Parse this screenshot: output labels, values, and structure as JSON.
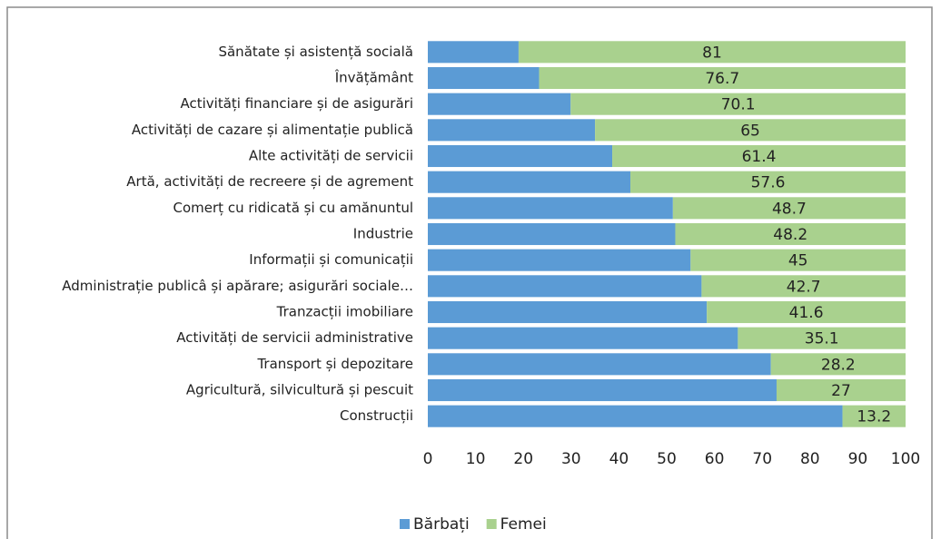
{
  "chart_data": {
    "type": "stacked-barh",
    "categories": [
      "Sănătate și asistență socială",
      "Învățământ",
      "Activități financiare și de asigurări",
      "Activități de cazare și alimentație publică",
      "Alte activități de servicii",
      "Artă, activități de recreere și de agrement",
      "Comerț cu ridicată și cu amănuntul",
      "Industrie",
      "Informații și comunicații",
      "Administrație publicâ și apărare; asigurări sociale…",
      "Tranzacții imobiliare",
      "Activități de servicii administrative",
      "Transport și depozitare",
      "Agricultură, silvicultură și pescuit",
      "Construcții"
    ],
    "series": [
      {
        "name": "Bărbați",
        "color": "#5b9bd5",
        "values": [
          19,
          23.3,
          29.9,
          35,
          38.6,
          42.4,
          51.3,
          51.8,
          55,
          57.3,
          58.4,
          64.9,
          71.8,
          73,
          86.8
        ]
      },
      {
        "name": "Femei",
        "color": "#a9d18e",
        "values": [
          81,
          76.7,
          70.1,
          65,
          61.4,
          57.6,
          48.7,
          48.2,
          45,
          42.7,
          41.6,
          35.1,
          28.2,
          27,
          13.2
        ]
      }
    ],
    "xlim": [
      0,
      100
    ],
    "xticks": [
      0,
      10,
      20,
      30,
      40,
      50,
      60,
      70,
      80,
      90,
      100
    ],
    "data_labels_series": 1
  }
}
